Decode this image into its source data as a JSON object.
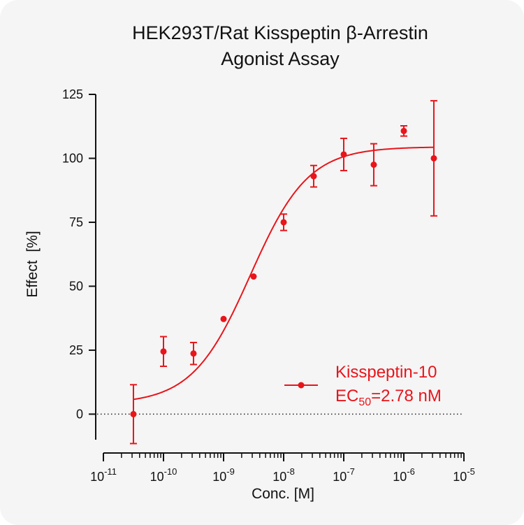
{
  "chart_data": {
    "type": "scatter",
    "title_lines": [
      "HEK293T/Rat Kisspeptin β-Arrestin",
      "Agonist Assay"
    ],
    "xlabel": "Conc. [M]",
    "ylabel": "Effect  [%]",
    "xscale": "log",
    "xlim": [
      1e-11,
      1e-05
    ],
    "x_tick_labels": [
      {
        "base": "10",
        "exp": "-11"
      },
      {
        "base": "10",
        "exp": "-10"
      },
      {
        "base": "10",
        "exp": "-9"
      },
      {
        "base": "10",
        "exp": "-8"
      },
      {
        "base": "10",
        "exp": "-7"
      },
      {
        "base": "10",
        "exp": "-6"
      },
      {
        "base": "10",
        "exp": "-5"
      }
    ],
    "ylim": [
      -10,
      125
    ],
    "y_ticks": [
      0,
      25,
      50,
      75,
      100,
      125
    ],
    "y_tick_labels": [
      "0",
      "25",
      "50",
      "75",
      "100",
      "125"
    ],
    "reference_line": {
      "y": 0,
      "style": "dotted"
    },
    "grid": false,
    "legend_position": "bottom-right",
    "series": [
      {
        "name": "Kisspeptin-10",
        "color": "#e8151b",
        "marker": "circle",
        "points": [
          {
            "x": 3.16e-11,
            "y": 0,
            "err": 11.5
          },
          {
            "x": 1e-10,
            "y": 24.5,
            "err": 5.8
          },
          {
            "x": 3.16e-10,
            "y": 23.7,
            "err": 4.3
          },
          {
            "x": 1e-09,
            "y": 37.2,
            "err": 0
          },
          {
            "x": 3.16e-09,
            "y": 53.8,
            "err": 0
          },
          {
            "x": 1e-08,
            "y": 75.0,
            "err": 3.2
          },
          {
            "x": 3.16e-08,
            "y": 93.0,
            "err": 4.2
          },
          {
            "x": 1e-07,
            "y": 101.5,
            "err": 6.3
          },
          {
            "x": 3.16e-07,
            "y": 97.5,
            "err": 8.2
          },
          {
            "x": 1e-06,
            "y": 110.7,
            "err": 2.0
          },
          {
            "x": 3.16e-06,
            "y": 100.0,
            "err": 22.5
          }
        ],
        "fit": {
          "bottom": 4,
          "top": 104.5,
          "ec50": 2.78e-09,
          "hill": 0.9,
          "x_range": [
            3.16e-11,
            3.16e-06
          ]
        }
      }
    ],
    "legend": {
      "label": "Kisspeptin-10",
      "ec50_prefix": "EC",
      "ec50_sub": "50",
      "ec50_value": "=2.78 nM"
    }
  }
}
